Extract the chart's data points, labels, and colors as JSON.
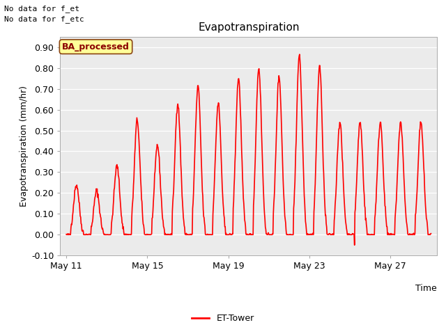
{
  "title": "Evapotranspiration",
  "xlabel_right": "Time",
  "ylabel": "Evapotranspiration (mm/hr)",
  "ylim": [
    -0.1,
    0.95
  ],
  "yticks": [
    -0.1,
    0.0,
    0.1,
    0.2,
    0.3,
    0.4,
    0.5,
    0.6,
    0.7,
    0.8,
    0.9
  ],
  "background_color": "#ebebeb",
  "line_color": "#ff0000",
  "annotation_text1": "No data for f_et",
  "annotation_text2": "No data for f_etc",
  "ba_label": "BA_processed",
  "legend_label": "ET-Tower",
  "xtick_labels": [
    "May 11",
    "May 15",
    "May 19",
    "May 23",
    "May 27"
  ],
  "xtick_days": [
    0,
    4,
    8,
    12,
    16
  ],
  "n_days": 18,
  "day_peaks": [
    0.24,
    0.21,
    0.33,
    0.55,
    0.43,
    0.63,
    0.71,
    0.63,
    0.75,
    0.8,
    0.76,
    0.86,
    0.81,
    0.54,
    0.54,
    0.54,
    0.54,
    0.54
  ],
  "title_fontsize": 11,
  "tick_fontsize": 9,
  "ylabel_fontsize": 9,
  "annot_fontsize": 8
}
